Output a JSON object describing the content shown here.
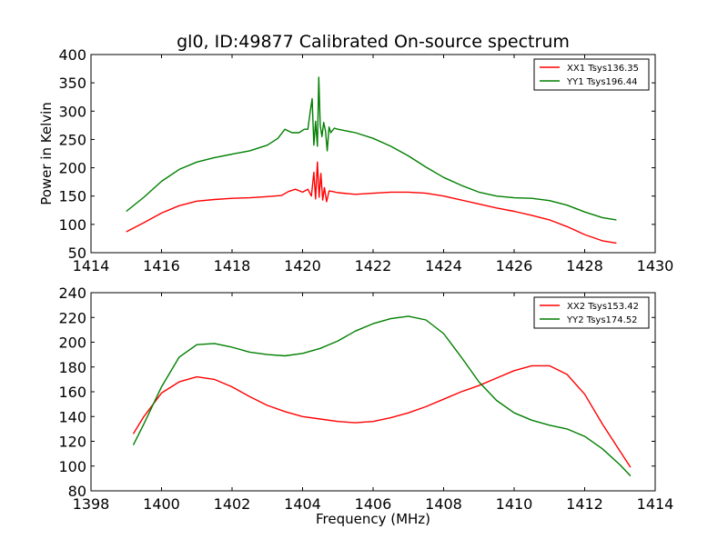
{
  "figure": {
    "title": "gl0, ID:49877 Calibrated On-source spectrum",
    "xlabel": "Frequency (MHz)"
  },
  "colors": {
    "red": "#ff0000",
    "green": "#007f00",
    "axes": "#000000",
    "background": "#ffffff"
  },
  "chart_data": [
    {
      "type": "line",
      "title": "gl0, ID:49877 Calibrated On-source spectrum",
      "xlabel": "",
      "ylabel": "Power in Kelvin",
      "xlim": [
        1414,
        1430
      ],
      "ylim": [
        50,
        400
      ],
      "xticks": [
        1414,
        1416,
        1418,
        1420,
        1422,
        1424,
        1426,
        1428,
        1430
      ],
      "yticks": [
        50,
        100,
        150,
        200,
        250,
        300,
        350,
        400
      ],
      "grid": false,
      "legend_position": "top-right",
      "series": [
        {
          "name": "XX1 Tsys136.35",
          "color": "#ff0000",
          "x": [
            1415.0,
            1415.5,
            1416.0,
            1416.5,
            1417.0,
            1417.5,
            1418.0,
            1418.5,
            1419.0,
            1419.4,
            1419.6,
            1419.8,
            1420.0,
            1420.15,
            1420.25,
            1420.32,
            1420.37,
            1420.42,
            1420.47,
            1420.52,
            1420.57,
            1420.62,
            1420.68,
            1420.75,
            1420.85,
            1421.0,
            1421.5,
            1422.0,
            1422.5,
            1423.0,
            1423.5,
            1424.0,
            1424.5,
            1425.0,
            1425.5,
            1426.0,
            1426.5,
            1427.0,
            1427.5,
            1428.0,
            1428.5,
            1428.9
          ],
          "y": [
            87,
            103,
            120,
            133,
            141,
            144,
            146,
            147,
            149,
            151,
            158,
            162,
            157,
            162,
            150,
            192,
            145,
            210,
            148,
            190,
            143,
            165,
            140,
            159,
            158,
            156,
            153,
            155,
            157,
            157,
            155,
            150,
            143,
            136,
            129,
            123,
            116,
            108,
            96,
            82,
            71,
            67
          ]
        },
        {
          "name": "YY1 Tsys196.44",
          "color": "#007f00",
          "x": [
            1415.0,
            1415.5,
            1416.0,
            1416.5,
            1417.0,
            1417.5,
            1418.0,
            1418.5,
            1419.0,
            1419.3,
            1419.5,
            1419.7,
            1419.9,
            1420.05,
            1420.15,
            1420.22,
            1420.27,
            1420.32,
            1420.37,
            1420.42,
            1420.46,
            1420.5,
            1420.55,
            1420.6,
            1420.65,
            1420.7,
            1420.75,
            1420.8,
            1420.9,
            1421.0,
            1421.5,
            1422.0,
            1422.5,
            1423.0,
            1423.5,
            1424.0,
            1424.5,
            1425.0,
            1425.5,
            1426.0,
            1426.5,
            1427.0,
            1427.5,
            1428.0,
            1428.5,
            1428.9
          ],
          "y": [
            123,
            148,
            176,
            197,
            210,
            218,
            224,
            230,
            240,
            252,
            268,
            262,
            262,
            268,
            268,
            300,
            322,
            240,
            282,
            238,
            360,
            275,
            255,
            280,
            265,
            230,
            272,
            262,
            270,
            268,
            262,
            252,
            238,
            221,
            201,
            183,
            169,
            157,
            150,
            147,
            146,
            142,
            134,
            122,
            112,
            108
          ]
        }
      ]
    },
    {
      "type": "line",
      "title": "",
      "xlabel": "Frequency (MHz)",
      "ylabel": "",
      "xlim": [
        1398,
        1414
      ],
      "ylim": [
        80,
        240
      ],
      "xticks": [
        1398,
        1400,
        1402,
        1404,
        1406,
        1408,
        1410,
        1412,
        1414
      ],
      "yticks": [
        80,
        100,
        120,
        140,
        160,
        180,
        200,
        220,
        240
      ],
      "grid": false,
      "legend_position": "top-right",
      "series": [
        {
          "name": "XX2 Tsys153.42",
          "color": "#ff0000",
          "x": [
            1399.2,
            1399.5,
            1400.0,
            1400.5,
            1401.0,
            1401.5,
            1402.0,
            1402.5,
            1403.0,
            1403.5,
            1404.0,
            1404.5,
            1405.0,
            1405.5,
            1406.0,
            1406.5,
            1407.0,
            1407.5,
            1408.0,
            1408.5,
            1409.0,
            1409.5,
            1410.0,
            1410.5,
            1411.0,
            1411.5,
            1412.0,
            1412.5,
            1413.0,
            1413.3
          ],
          "y": [
            126,
            140,
            159,
            168,
            172,
            170,
            164,
            156,
            149,
            144,
            140,
            138,
            136,
            135,
            136,
            139,
            143,
            148,
            154,
            160,
            165,
            171,
            177,
            181,
            181,
            174,
            158,
            134,
            112,
            99
          ]
        },
        {
          "name": "YY2 Tsys174.52",
          "color": "#007f00",
          "x": [
            1399.2,
            1399.5,
            1400.0,
            1400.5,
            1401.0,
            1401.5,
            1402.0,
            1402.5,
            1403.0,
            1403.5,
            1404.0,
            1404.5,
            1405.0,
            1405.5,
            1406.0,
            1406.5,
            1407.0,
            1407.5,
            1408.0,
            1408.5,
            1409.0,
            1409.5,
            1410.0,
            1410.5,
            1411.0,
            1411.5,
            1412.0,
            1412.5,
            1413.0,
            1413.3
          ],
          "y": [
            117,
            134,
            164,
            188,
            198,
            199,
            196,
            192,
            190,
            189,
            191,
            195,
            201,
            209,
            215,
            219,
            221,
            218,
            207,
            188,
            168,
            153,
            143,
            137,
            133,
            130,
            124,
            114,
            101,
            92
          ]
        }
      ]
    }
  ]
}
